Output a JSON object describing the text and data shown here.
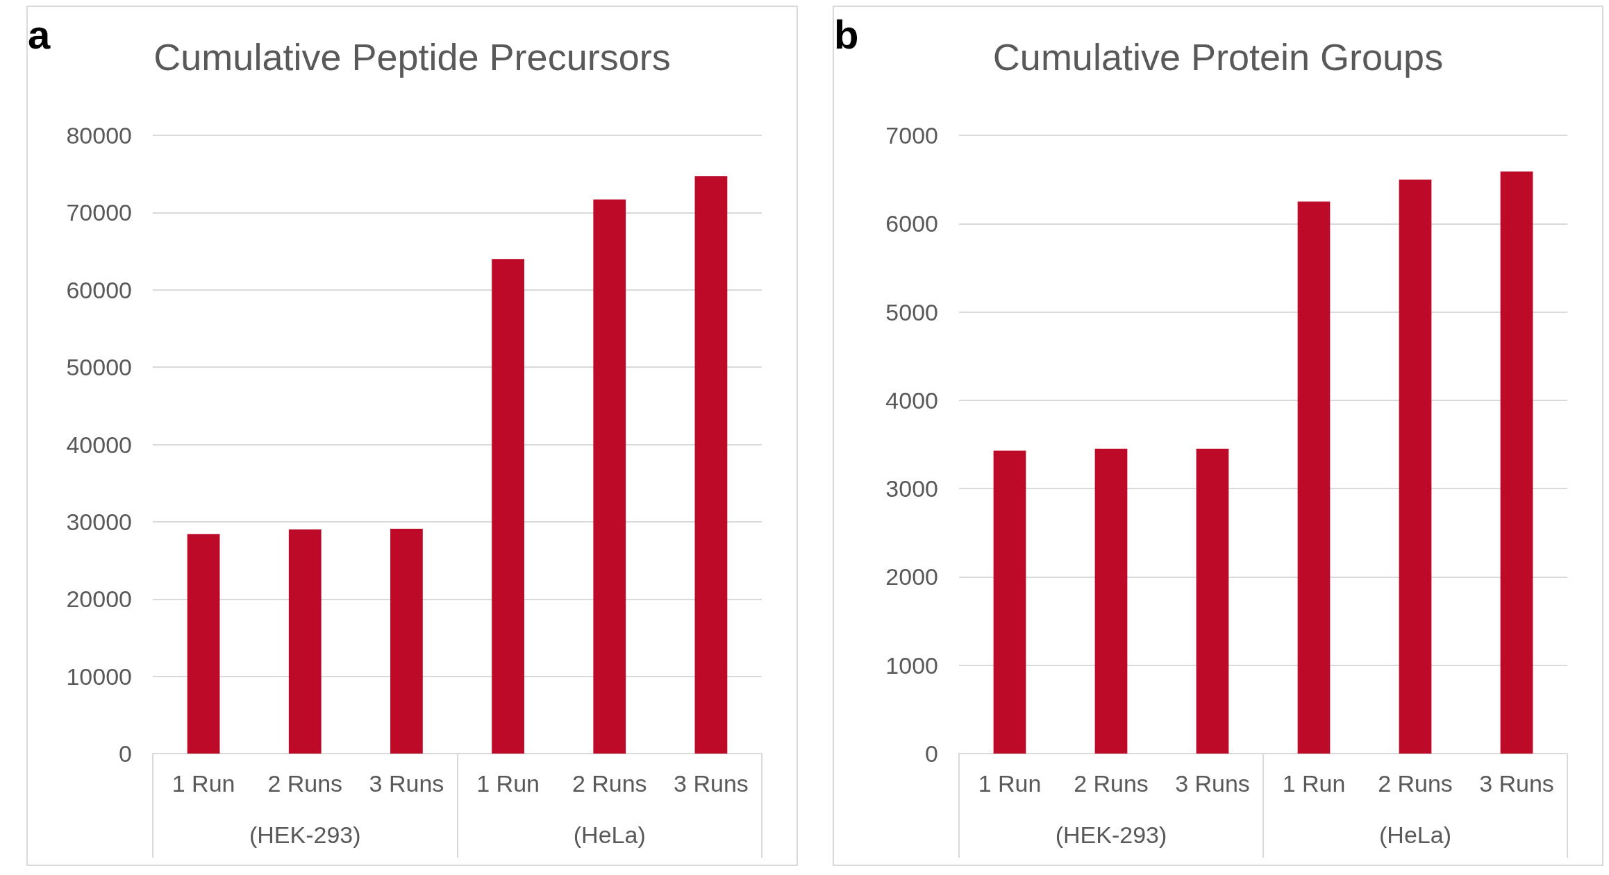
{
  "chart_data": [
    {
      "type": "bar",
      "title": "Cumulative Peptide Precursors",
      "categories": [
        "1 Run",
        "2 Runs",
        "3 Runs",
        "1 Run",
        "2 Runs",
        "3 Runs"
      ],
      "values": [
        28400,
        29000,
        29100,
        64000,
        71700,
        74700
      ],
      "color": "#be0a29",
      "ylim": [
        0,
        80000
      ],
      "yticks": [
        0,
        10000,
        20000,
        30000,
        40000,
        50000,
        60000,
        70000,
        80000
      ],
      "grid": "y",
      "annotations": [
        "a",
        "(HEK-293)",
        "(HeLa)"
      ]
    },
    {
      "type": "bar",
      "title": "Cumulative Protein Groups",
      "categories": [
        "1 Run",
        "2 Runs",
        "3 Runs",
        "1 Run",
        "2 Runs",
        "3 Runs"
      ],
      "values": [
        3430,
        3450,
        3450,
        6250,
        6500,
        6590
      ],
      "color": "#be0a29",
      "ylim": [
        0,
        7000
      ],
      "yticks": [
        0,
        1000,
        2000,
        3000,
        4000,
        5000,
        6000,
        7000
      ],
      "grid": "y",
      "annotations": [
        "b",
        "(HEK-293)",
        "(HeLa)"
      ]
    }
  ]
}
